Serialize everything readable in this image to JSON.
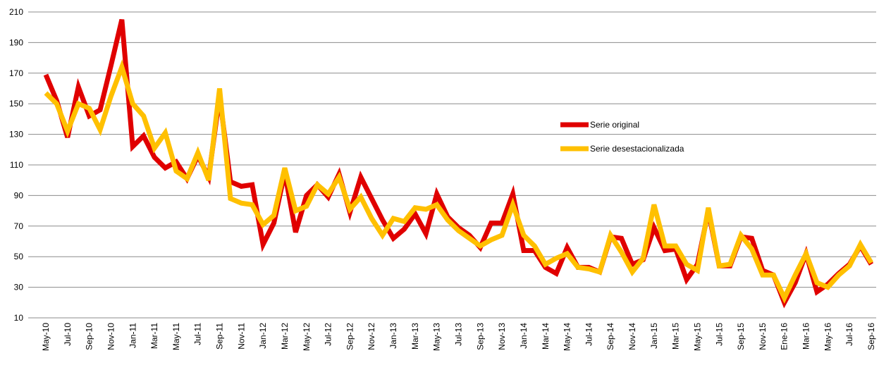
{
  "chart_data": {
    "type": "line",
    "categories": [
      "May-10",
      null,
      "Jul-10",
      null,
      "Sep-10",
      null,
      "Nov-10",
      null,
      "Jan-11",
      null,
      "Mar-11",
      null,
      "May-11",
      null,
      "Jul-11",
      null,
      "Sep-11",
      null,
      "Nov-11",
      null,
      "Jan-12",
      null,
      "Mar-12",
      null,
      "May-12",
      null,
      "Jul-12",
      null,
      "Sep-12",
      null,
      "Nov-12",
      null,
      "Jan-13",
      null,
      "Mar-13",
      null,
      "May-13",
      null,
      "Jul-13",
      null,
      "Sep-13",
      null,
      "Nov-13",
      null,
      "Jan-14",
      null,
      "Mar-14",
      null,
      "May-14",
      null,
      "Jul-14",
      null,
      "Sep-14",
      null,
      "Nov-14",
      null,
      "Jan-15",
      null,
      "Mar-15",
      null,
      "May-15",
      null,
      "Jul-15",
      null,
      "Sep-15",
      null,
      "Nov-15",
      null,
      "Ene-16",
      null,
      "Mar-16",
      null,
      "May-16",
      null,
      "Jul-16",
      null,
      "Sep-16"
    ],
    "series": [
      {
        "name": "Serie original",
        "color": "#e00000",
        "values": [
          169,
          152,
          128,
          161,
          142,
          146,
          175,
          205,
          122,
          129,
          115,
          108,
          112,
          101,
          116,
          102,
          155,
          99,
          96,
          97,
          58,
          72,
          105,
          66,
          90,
          97,
          89,
          104,
          79,
          102,
          88,
          74,
          62,
          68,
          78,
          65,
          91,
          76,
          69,
          64,
          56,
          72,
          72,
          91,
          54,
          54,
          43,
          39,
          56,
          43,
          43,
          40,
          63,
          62,
          45,
          48,
          69,
          54,
          55,
          35,
          45,
          80,
          44,
          44,
          63,
          62,
          41,
          38,
          20,
          33,
          52,
          27,
          32,
          39,
          45,
          57,
          45
        ]
      },
      {
        "name": "Serie desestacionalizada",
        "color": "#ffc000",
        "values": [
          157,
          150,
          132,
          150,
          147,
          133,
          155,
          174,
          150,
          142,
          121,
          131,
          106,
          101,
          118,
          100,
          160,
          88,
          85,
          84,
          71,
          77,
          108,
          80,
          83,
          97,
          91,
          102,
          81,
          89,
          75,
          64,
          75,
          73,
          82,
          81,
          84,
          74,
          67,
          62,
          57,
          61,
          64,
          84,
          64,
          57,
          45,
          49,
          52,
          43,
          42,
          40,
          64,
          53,
          40,
          49,
          84,
          57,
          57,
          45,
          41,
          82,
          44,
          45,
          64,
          55,
          38,
          38,
          23,
          38,
          52,
          33,
          30,
          38,
          44,
          58,
          46
        ]
      }
    ],
    "ylim": [
      10,
      210
    ],
    "yticks": [
      10,
      30,
      50,
      70,
      90,
      110,
      130,
      150,
      170,
      190,
      210
    ],
    "grid": true,
    "legend": "center-right"
  }
}
